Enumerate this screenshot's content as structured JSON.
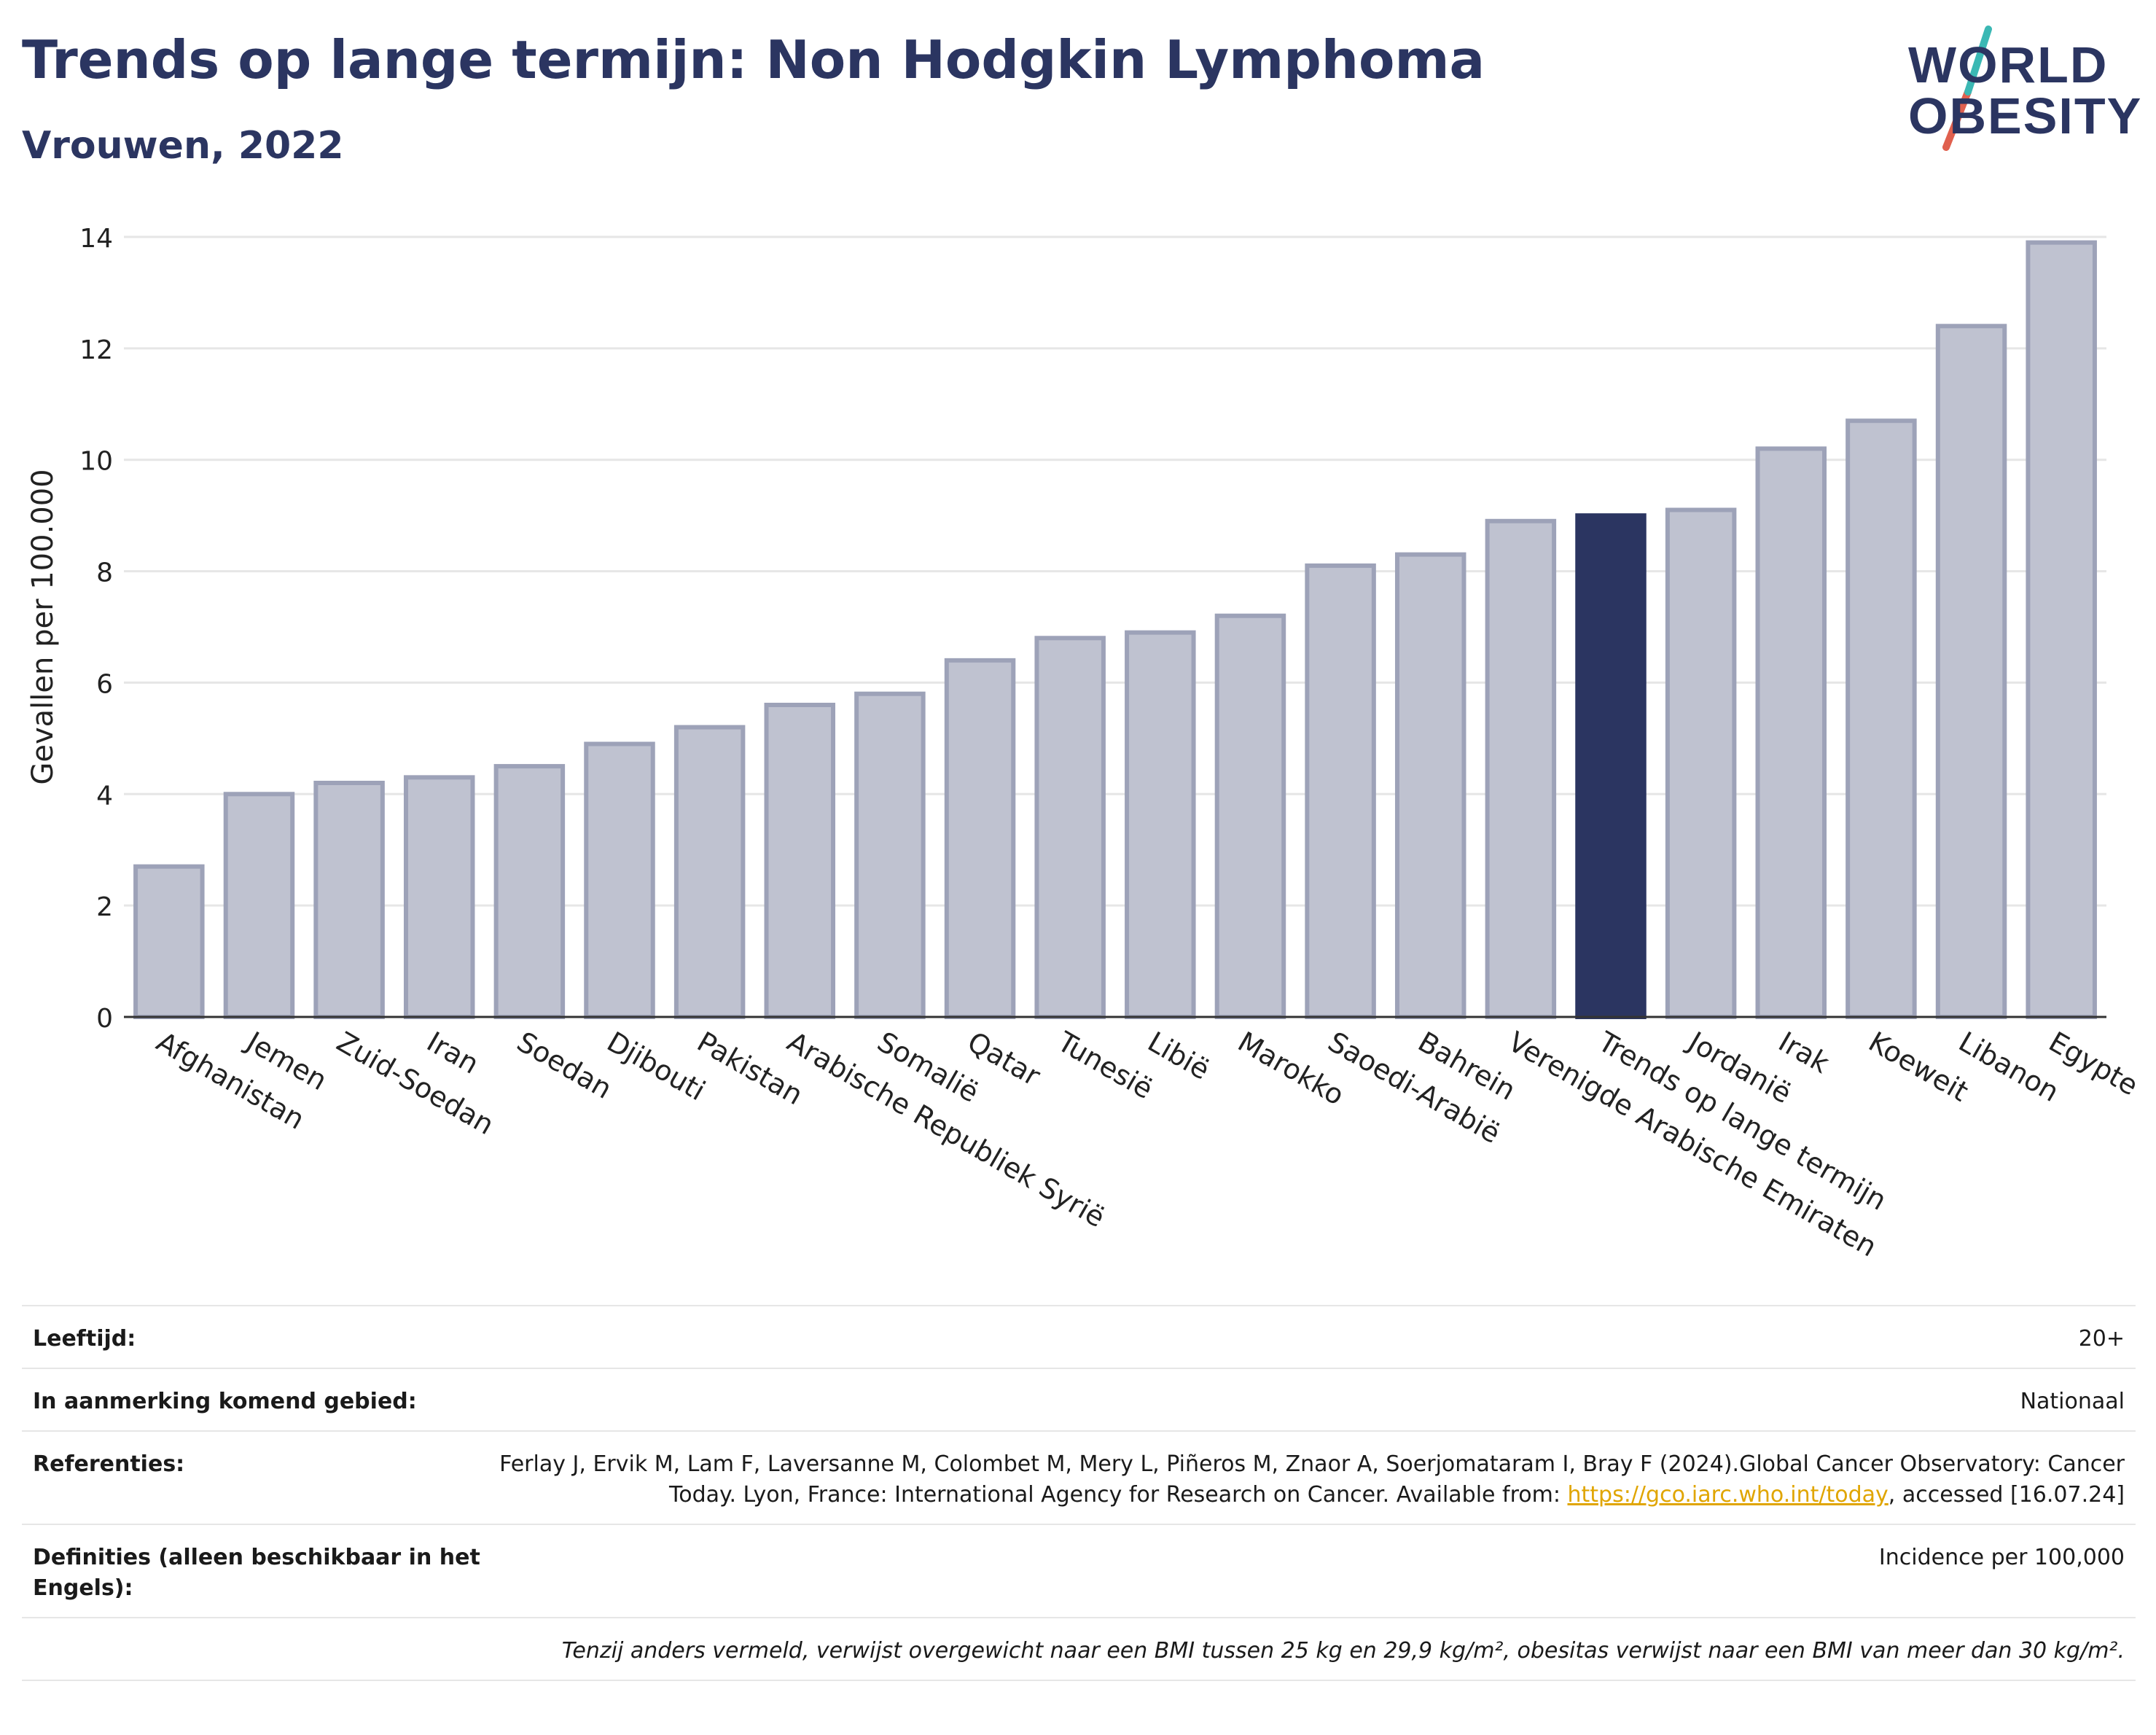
{
  "title": "Trends op lange termijn: Non Hodgkin Lymphoma",
  "subtitle": "Vrouwen, 2022",
  "logo": {
    "line1": "WORLD",
    "line2": "OBESITY",
    "accent_colors": [
      "#e0604e",
      "#3bb8b4"
    ]
  },
  "colors": {
    "bar": "#bfc2d0",
    "bar_edge": "#9da2b8",
    "highlight": "#2b3561",
    "grid": "#e6e6e6"
  },
  "chart_data": {
    "type": "bar",
    "title": "",
    "xlabel": "",
    "ylabel": "Gevallen per 100.000",
    "ylim": [
      0,
      14
    ],
    "yticks": [
      0,
      2,
      4,
      6,
      8,
      10,
      12,
      14
    ],
    "grid": true,
    "highlight_category": "Trends op lange termijn",
    "categories": [
      "Afghanistan",
      "Jemen",
      "Zuid-Soedan",
      "Iran",
      "Soedan",
      "Djibouti",
      "Pakistan",
      "Arabische Republiek Syrië",
      "Somalië",
      "Qatar",
      "Tunesië",
      "Libië",
      "Marokko",
      "Saoedi-Arabië",
      "Bahrein",
      "Verenigde Arabische Emiraten",
      "Trends op lange termijn",
      "Jordanië",
      "Irak",
      "Koeweit",
      "Libanon",
      "Egypte"
    ],
    "values": [
      2.7,
      4.0,
      4.2,
      4.3,
      4.5,
      4.9,
      5.2,
      5.6,
      5.8,
      6.4,
      6.8,
      6.9,
      7.2,
      8.1,
      8.3,
      8.9,
      9.0,
      9.1,
      10.2,
      10.7,
      12.4,
      13.9
    ]
  },
  "footer": {
    "age_label": "Leeftijd:",
    "age_value": "20+",
    "area_label": "In aanmerking komend gebied:",
    "area_value": "Nationaal",
    "refs_label": "Referenties:",
    "refs_text1": "Ferlay J, Ervik M, Lam F, Laversanne M, Colombet M, Mery L, Piñeros M, Znaor A, Soerjomataram I, Bray F (2024).Global Cancer Observatory: Cancer Today. Lyon, France: International Agency for Research on Cancer. Available from: ",
    "refs_link": "https://gco.iarc.who.int/today",
    "refs_text2": ", accessed [16.07.24]",
    "defs_label": "Definities (alleen beschikbaar in het Engels):",
    "defs_value": "Incidence per 100,000",
    "note": "Tenzij anders vermeld, verwijst overgewicht naar een BMI tussen 25 kg en 29,9 kg/m², obesitas verwijst naar een BMI van meer dan 30 kg/m²."
  }
}
